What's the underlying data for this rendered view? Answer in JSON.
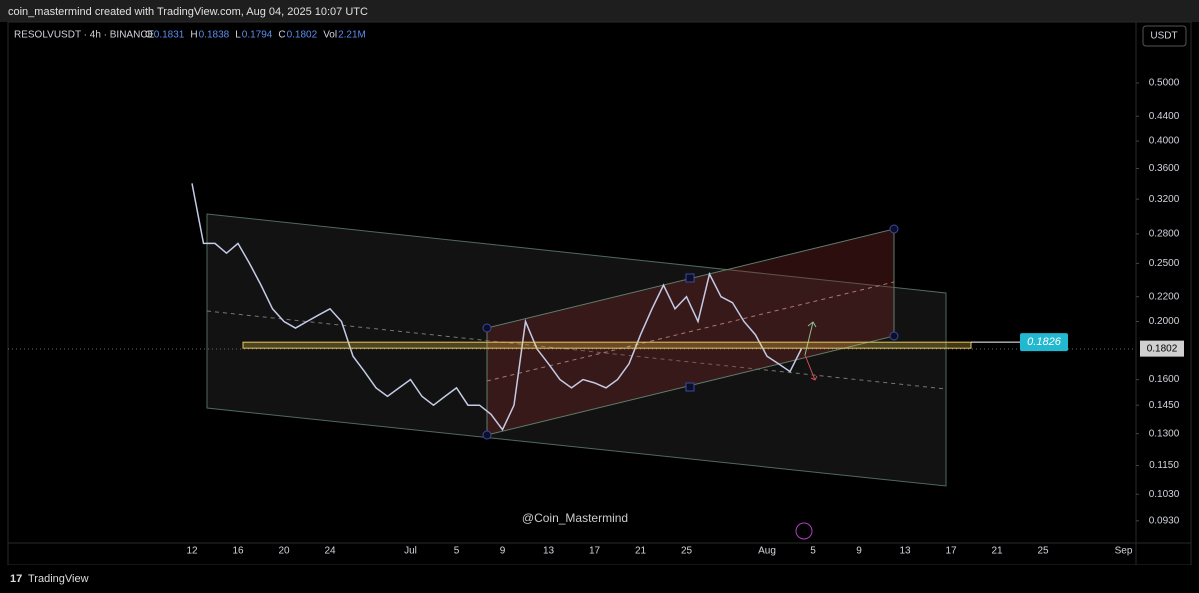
{
  "header": "coin_mastermind created with TradingView.com, Aug 04, 2025 10:07 UTC",
  "symbol": "RESOLVUSDT · 4h · BINANCE",
  "ohlc": [
    [
      "O",
      "0.1831"
    ],
    [
      "H",
      "0.1838"
    ],
    [
      "L",
      "0.1794"
    ],
    [
      "C",
      "0.1802"
    ],
    [
      "Vol",
      "2.21M"
    ]
  ],
  "currency_button": "USDT",
  "watermark": "@Coin_Mastermind",
  "footer": "TradingView",
  "chart_data": {
    "type": "line",
    "color": "#c3cbe6",
    "log_scale": true,
    "grid": false,
    "categories": [
      "12",
      null,
      null,
      null,
      "16",
      null,
      null,
      null,
      "20",
      null,
      null,
      null,
      "24",
      null,
      null,
      null,
      null,
      null,
      null,
      "Jul",
      null,
      null,
      null,
      "5",
      null,
      null,
      null,
      "9",
      null,
      null,
      null,
      "13",
      null,
      null,
      null,
      "17",
      null,
      null,
      null,
      "21",
      null,
      null,
      null,
      "25",
      null,
      null,
      null,
      null,
      null,
      null,
      "Aug",
      null,
      null,
      null,
      "5",
      null,
      null,
      null,
      "9",
      null,
      null,
      null,
      "13",
      null,
      null,
      null,
      "17",
      null,
      null,
      null,
      "21",
      null,
      null,
      null,
      "25",
      null,
      null,
      null,
      null,
      null,
      null,
      "Sep"
    ],
    "values": [
      0.34,
      0.27,
      0.27,
      0.26,
      0.27,
      0.25,
      0.23,
      0.21,
      0.2,
      0.195,
      0.2,
      0.205,
      0.21,
      0.2,
      0.175,
      0.165,
      0.155,
      0.15,
      0.155,
      0.16,
      0.15,
      0.145,
      0.15,
      0.155,
      0.145,
      0.145,
      0.14,
      0.132,
      0.145,
      0.2,
      0.18,
      0.17,
      0.16,
      0.155,
      0.16,
      0.158,
      0.155,
      0.16,
      0.17,
      0.19,
      0.21,
      0.23,
      0.21,
      0.22,
      0.2,
      0.24,
      0.22,
      0.215,
      0.2,
      0.19,
      0.175,
      0.17,
      0.165,
      0.1802,
      null,
      null,
      null,
      null,
      null,
      null,
      null,
      null,
      null,
      null,
      null,
      null,
      null,
      null,
      null,
      null,
      null,
      null,
      null,
      null,
      null,
      null,
      null,
      null,
      null,
      null,
      null,
      null
    ],
    "ylim": [
      0.0854,
      0.632
    ],
    "yticks": [
      {
        "value": 0.5,
        "label": "0.5000"
      },
      {
        "value": 0.44,
        "label": "0.4400"
      },
      {
        "value": 0.4,
        "label": "0.4000"
      },
      {
        "value": 0.36,
        "label": "0.3600"
      },
      {
        "value": 0.32,
        "label": "0.3200"
      },
      {
        "value": 0.28,
        "label": "0.2800"
      },
      {
        "value": 0.25,
        "label": "0.2500"
      },
      {
        "value": 0.22,
        "label": "0.2200"
      },
      {
        "value": 0.2,
        "label": "0.2000"
      },
      {
        "value": 0.16,
        "label": "0.1600"
      },
      {
        "value": 0.145,
        "label": "0.1450"
      },
      {
        "value": 0.13,
        "label": "0.1300"
      },
      {
        "value": 0.115,
        "label": "0.1150"
      },
      {
        "value": 0.103,
        "label": "0.1030"
      },
      {
        "value": 0.093,
        "label": "0.0930"
      }
    ],
    "level": 0.1826
  }
}
